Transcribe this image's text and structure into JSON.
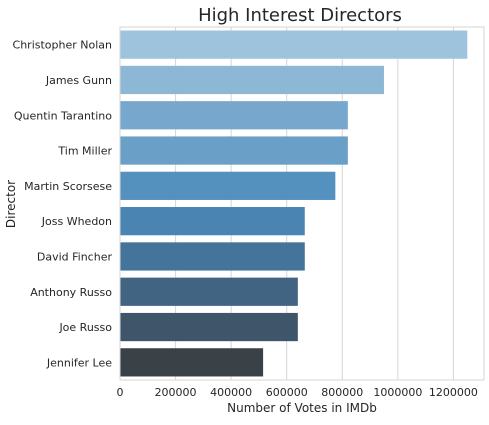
{
  "chart_data": {
    "type": "bar",
    "orientation": "horizontal",
    "title": "High Interest Directors",
    "xlabel": "Number of Votes in IMDb",
    "ylabel": "Director",
    "categories": [
      "Christopher Nolan",
      "James Gunn",
      "Quentin Tarantino",
      "Tim Miller",
      "Martin Scorsese",
      "Joss Whedon",
      "David Fincher",
      "Anthony Russo",
      "Joe Russo",
      "Jennifer Lee"
    ],
    "values": [
      1250000,
      950000,
      820000,
      820000,
      775000,
      665000,
      665000,
      640000,
      640000,
      515000
    ],
    "colors": [
      "#9ec4dd",
      "#8cb8d6",
      "#78a7cd",
      "#6aa0c7",
      "#5591bf",
      "#4a84b2",
      "#44749a",
      "#416483",
      "#3f5569",
      "#3a4248"
    ],
    "xlim": [
      0,
      1310000
    ],
    "xticks": [
      0,
      200000,
      400000,
      600000,
      800000,
      1000000,
      1200000
    ],
    "xtick_labels": [
      "0",
      "200000",
      "400000",
      "600000",
      "800000",
      "1000000",
      "1200000"
    ],
    "grid": "vertical",
    "style": "whitegrid"
  }
}
